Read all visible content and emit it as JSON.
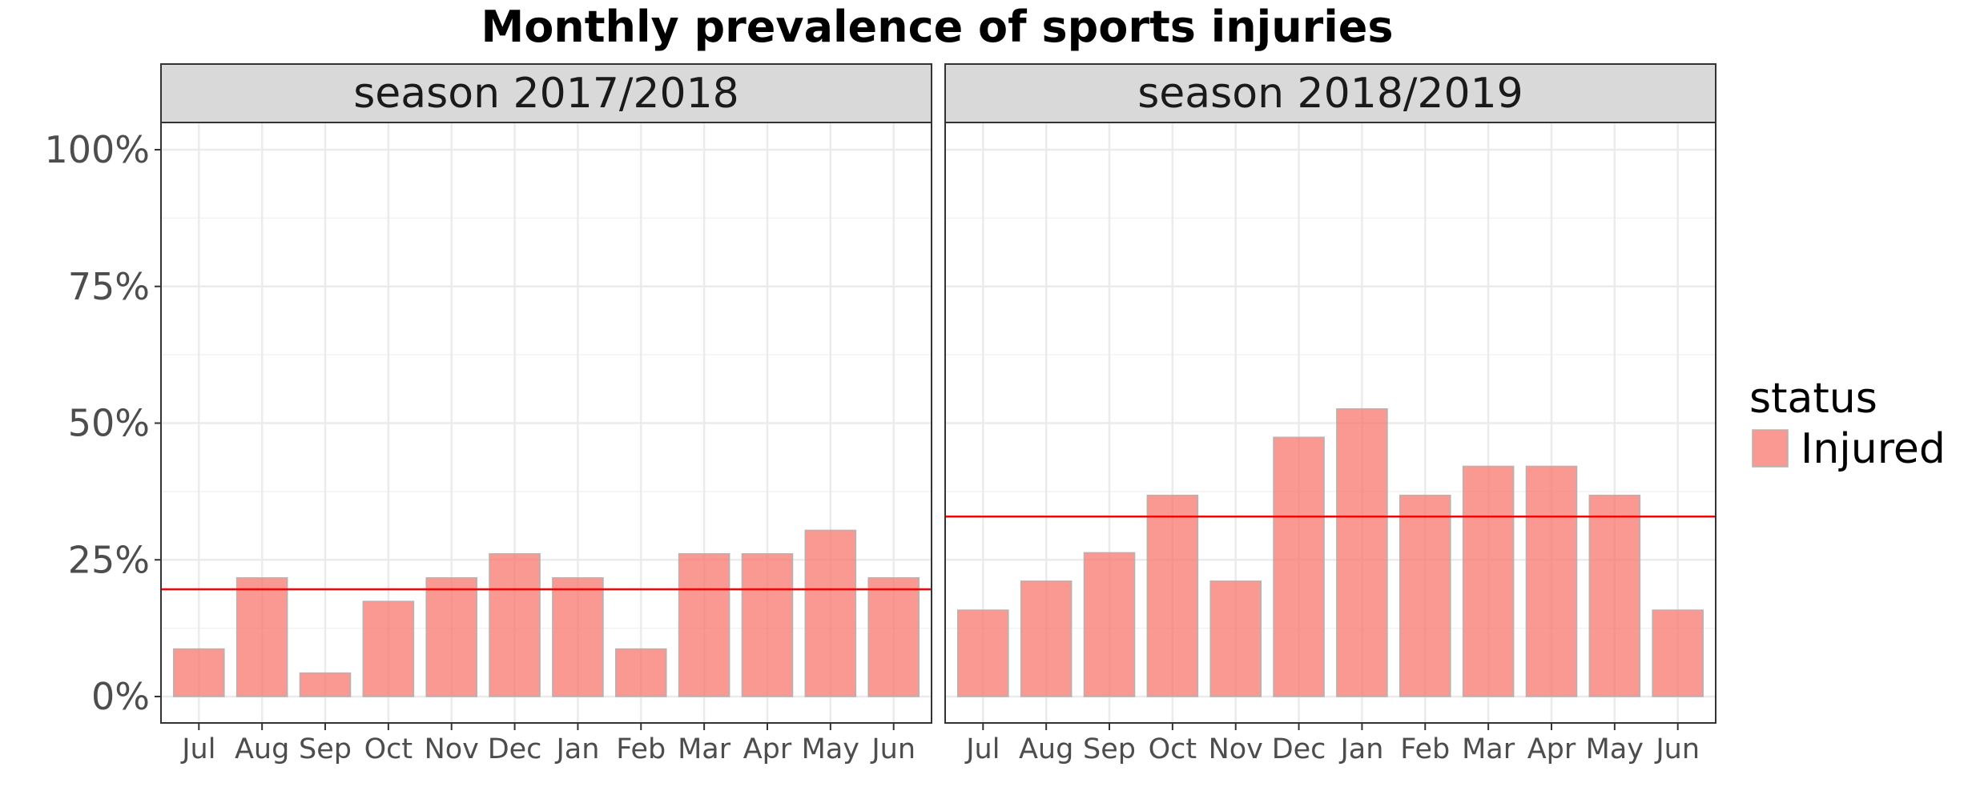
{
  "chart_data": {
    "type": "bar",
    "title": "Monthly prevalence of sports injuries",
    "xlabel": "",
    "ylabel": "",
    "ylim": [
      0,
      100
    ],
    "yticks": [
      "0%",
      "25%",
      "50%",
      "75%",
      "100%"
    ],
    "ytick_values": [
      0,
      25,
      50,
      75,
      100
    ],
    "grid": true,
    "categories": [
      "Jul",
      "Aug",
      "Sep",
      "Oct",
      "Nov",
      "Dec",
      "Jan",
      "Feb",
      "Mar",
      "Apr",
      "May",
      "Jun"
    ],
    "legend": {
      "title": "status",
      "placement": "right",
      "entries": [
        {
          "label": "Injured",
          "color": "#F8766D"
        }
      ]
    },
    "bar_color": "#F8766D",
    "reference_line_color": "#FF0000",
    "facets": [
      {
        "label": "season 2017/2018",
        "values": [
          8.7,
          21.7,
          4.3,
          17.4,
          21.7,
          26.1,
          21.7,
          8.7,
          26.1,
          26.1,
          30.4,
          21.7
        ],
        "mean_line": 19.6
      },
      {
        "label": "season 2018/2019",
        "values": [
          15.8,
          21.1,
          26.3,
          36.8,
          21.1,
          47.4,
          52.6,
          36.8,
          42.1,
          42.1,
          36.8,
          15.8
        ],
        "mean_line": 32.9
      }
    ]
  }
}
